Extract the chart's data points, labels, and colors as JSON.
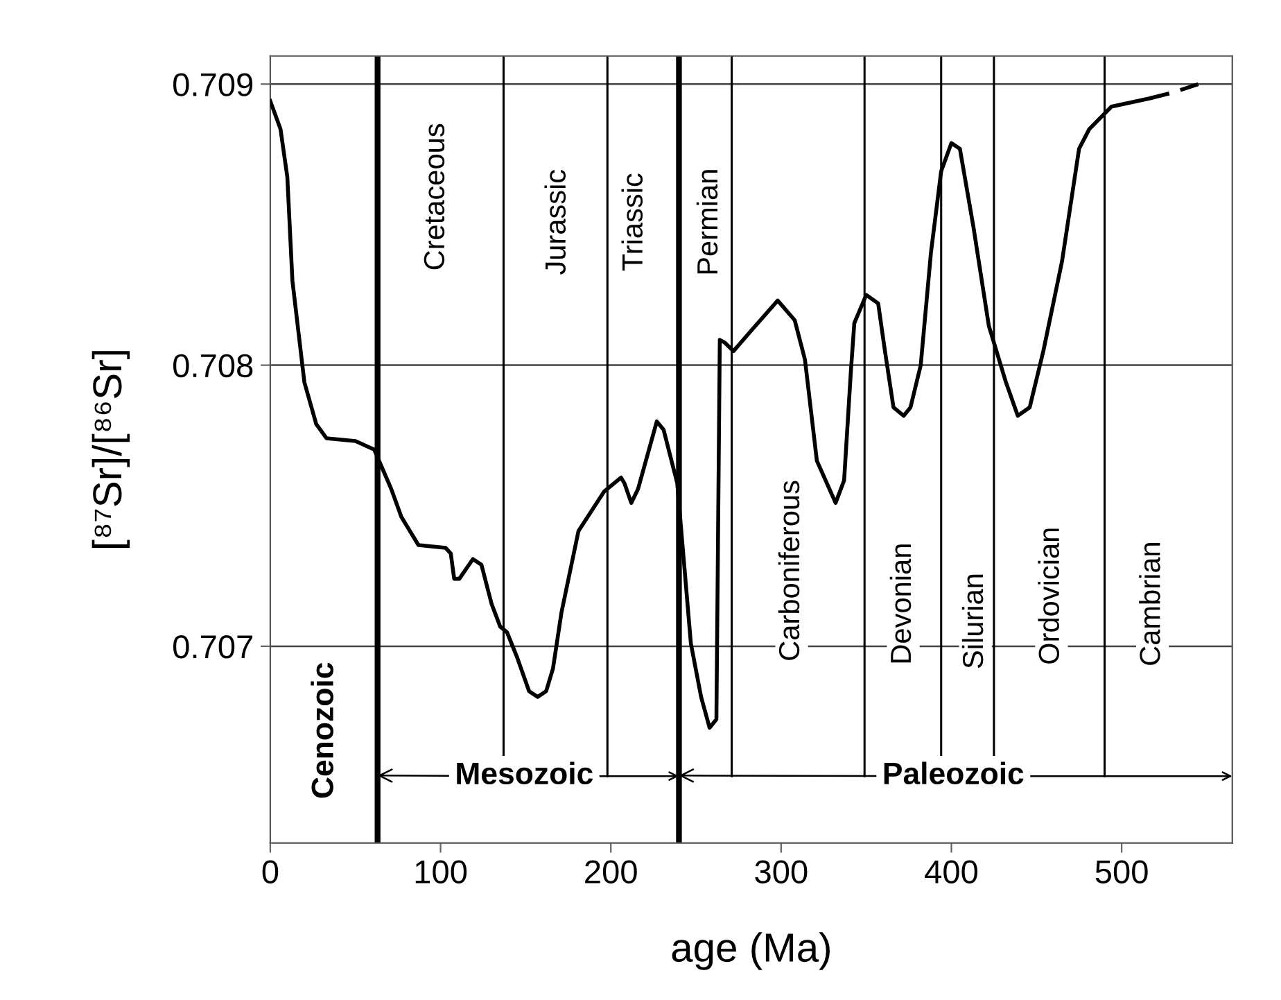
{
  "chart_data": {
    "type": "line",
    "xlabel": "age (Ma)",
    "ylabel": "[⁸⁷Sr]/[⁸⁶Sr]",
    "xlim": [
      0,
      565
    ],
    "ylim": [
      0.7063,
      0.7091
    ],
    "xticks": [
      0,
      100,
      200,
      300,
      400,
      500
    ],
    "yticks": [
      0.707,
      0.708,
      0.709
    ],
    "grid": "y",
    "marker": "none",
    "series": [
      {
        "color": "#000000",
        "line_style": "solid",
        "x": [
          0,
          6,
          10,
          13,
          20,
          27,
          33,
          50,
          61,
          71,
          77,
          87,
          103,
          106,
          108,
          111,
          119,
          124,
          130,
          135,
          139,
          145,
          152,
          157,
          162,
          166,
          171,
          181,
          196,
          206,
          208,
          212,
          216,
          227,
          231,
          239,
          247,
          253,
          258,
          262,
          264,
          267,
          272,
          282,
          298,
          308,
          314,
          321,
          332,
          337,
          341,
          343,
          350,
          357,
          361,
          366,
          372,
          376,
          382,
          388,
          394,
          400,
          405,
          413,
          422,
          432,
          439,
          446,
          454,
          465,
          475,
          481,
          494,
          517
        ],
        "values": [
          0.70894,
          0.70884,
          0.70867,
          0.7083,
          0.70794,
          0.70779,
          0.70774,
          0.70773,
          0.7077,
          0.70756,
          0.70746,
          0.70736,
          0.70735,
          0.70733,
          0.70724,
          0.70724,
          0.70731,
          0.70729,
          0.70715,
          0.70707,
          0.70705,
          0.70696,
          0.70684,
          0.70682,
          0.70684,
          0.70692,
          0.70712,
          0.70741,
          0.70755,
          0.7076,
          0.70758,
          0.70751,
          0.70756,
          0.7078,
          0.70777,
          0.70758,
          0.70701,
          0.70682,
          0.70671,
          0.70674,
          0.70809,
          0.70808,
          0.70805,
          0.70812,
          0.70823,
          0.70816,
          0.70802,
          0.70766,
          0.70751,
          0.70759,
          0.70798,
          0.70815,
          0.70825,
          0.70822,
          0.70805,
          0.70785,
          0.70782,
          0.70785,
          0.708,
          0.7084,
          0.70869,
          0.70879,
          0.70877,
          0.70849,
          0.70814,
          0.70794,
          0.70782,
          0.70785,
          0.70805,
          0.70837,
          0.70877,
          0.70884,
          0.70892,
          0.70895
        ]
      },
      {
        "color": "#000000",
        "line_style": "dashed",
        "x": [
          517,
          530,
          545
        ],
        "values": [
          0.70895,
          0.70897,
          0.709
        ]
      }
    ],
    "ref_lines": [
      {
        "axis": "x",
        "value": 63,
        "color": "#000000"
      },
      {
        "axis": "x",
        "value": 137,
        "color": "#000000"
      },
      {
        "axis": "x",
        "value": 198,
        "color": "#000000"
      },
      {
        "axis": "x",
        "value": 240,
        "color": "#000000"
      },
      {
        "axis": "x",
        "value": 271,
        "color": "#000000"
      },
      {
        "axis": "x",
        "value": 349,
        "color": "#000000"
      },
      {
        "axis": "x",
        "value": 394,
        "color": "#000000"
      },
      {
        "axis": "x",
        "value": 425,
        "color": "#000000"
      },
      {
        "axis": "x",
        "value": 490,
        "color": "#000000"
      }
    ],
    "annotations": [
      "Cretaceous",
      "Jurassic",
      "Triassic",
      "Permian",
      "Carboniferous",
      "Devonian",
      "Silurian",
      "Ordovician",
      "Cambrian",
      "Cenozoic",
      {
        "text": "Mesozoic",
        "x": 63,
        "y": 0.70654
      },
      {
        "text": "Paleozoic",
        "x": 240,
        "y": 0.70654
      }
    ]
  }
}
